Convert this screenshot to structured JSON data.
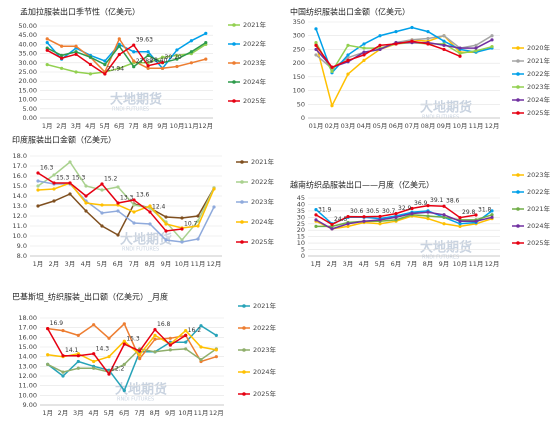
{
  "watermark": "大地期货",
  "watermark_sub": "RNDI FUTURES",
  "chart_data": [
    {
      "type": "line",
      "title": "孟加拉服装出口季节性（亿美元）",
      "legend": "right",
      "grid": true,
      "categories": [
        "1月",
        "2月",
        "3月",
        "4月",
        "5月",
        "6月",
        "7月",
        "8月",
        "9月",
        "10月",
        "11月",
        "12月"
      ],
      "ylim": [
        0,
        50
      ],
      "yticks": [
        {
          "value": 0,
          "label": "0.00"
        },
        {
          "value": 5,
          "label": "5.00"
        },
        {
          "value": 10,
          "label": "10.00"
        },
        {
          "value": 15,
          "label": "15.00"
        },
        {
          "value": 20,
          "label": "20.00"
        },
        {
          "value": 25,
          "label": "25.00"
        },
        {
          "value": 30,
          "label": "30.00"
        },
        {
          "value": 35,
          "label": "35.00"
        },
        {
          "value": 40,
          "label": "40.00"
        },
        {
          "value": 45,
          "label": "45.00"
        },
        {
          "value": 50,
          "label": "50.00"
        }
      ],
      "series": [
        {
          "name": "2021年",
          "color": "#92d050",
          "values": [
            29,
            27,
            25,
            24,
            25,
            27,
            30,
            30,
            33,
            34,
            35,
            40
          ]
        },
        {
          "name": "2022年",
          "color": "#00a0e9",
          "values": [
            41,
            32,
            38,
            34,
            31,
            40,
            36,
            36,
            27,
            37,
            42,
            46
          ]
        },
        {
          "name": "2023年",
          "color": "#ed7d31",
          "values": [
            43,
            39,
            39,
            33,
            25,
            43,
            31,
            27,
            27,
            28,
            30,
            32
          ]
        },
        {
          "name": "2024年",
          "color": "#2e9b4b",
          "values": [
            38,
            34,
            36,
            33,
            29,
            39,
            27.88,
            34,
            30,
            32,
            36,
            41
          ],
          "value_labels": [
            null,
            null,
            null,
            null,
            null,
            null,
            "27.88",
            null,
            null,
            null,
            null,
            null
          ]
        },
        {
          "name": "2025年",
          "color": "#e60012",
          "values": [
            36.8,
            32.5,
            34.6,
            29.1,
            23.94,
            34.5,
            39.63,
            28.4,
            30.2,
            null,
            null,
            null
          ],
          "value_labels": [
            null,
            null,
            null,
            null,
            "23.94",
            null,
            "39.63",
            "28.40",
            "30.20",
            null,
            null,
            null
          ]
        }
      ]
    },
    {
      "type": "line",
      "title": "中国纺织服装出口金额（亿美元）",
      "legend": "right",
      "grid": true,
      "categories": [
        "01月",
        "02月",
        "03月",
        "04月",
        "05月",
        "06月",
        "07月",
        "08月",
        "09月",
        "10月",
        "11月",
        "12月"
      ],
      "ylim": [
        0,
        350
      ],
      "yticks": [
        0,
        50,
        100,
        150,
        200,
        250,
        300,
        350
      ],
      "series": [
        {
          "name": "2020年",
          "color": "#ffc000",
          "values": [
            270,
            45,
            160,
            210,
            250,
            270,
            285,
            280,
            300,
            240,
            240,
            260
          ]
        },
        {
          "name": "2021年",
          "color": "#a5a5a5",
          "values": [
            230,
            180,
            220,
            240,
            250,
            275,
            285,
            290,
            300,
            255,
            265,
            300
          ]
        },
        {
          "name": "2022年",
          "color": "#00a0e9",
          "values": [
            325,
            165,
            230,
            270,
            300,
            315,
            330,
            315,
            280,
            250,
            240,
            255
          ]
        },
        {
          "name": "2023年",
          "color": "#92d050",
          "values": [
            275,
            170,
            265,
            255,
            255,
            270,
            275,
            270,
            270,
            235,
            245,
            260
          ]
        },
        {
          "name": "2024年",
          "color": "#7030a0",
          "values": [
            250,
            185,
            205,
            240,
            250,
            275,
            275,
            275,
            265,
            255,
            255,
            285
          ]
        },
        {
          "name": "2025年",
          "color": "#e60012",
          "values": [
            265,
            185,
            210,
            230,
            265,
            270,
            280,
            270,
            250,
            225,
            null,
            null
          ]
        }
      ]
    },
    {
      "type": "line",
      "title": "印度服装出口金额（亿美元）",
      "legend": "right",
      "grid": true,
      "categories": [
        "1月",
        "2月",
        "3月",
        "4月",
        "5月",
        "6月",
        "7月",
        "8月",
        "9月",
        "10月",
        "11月",
        "12月"
      ],
      "ylim": [
        8,
        18
      ],
      "yticks": [
        {
          "value": 8,
          "label": "8.0"
        },
        {
          "value": 9,
          "label": "9.0"
        },
        {
          "value": 10,
          "label": "10.0"
        },
        {
          "value": 11,
          "label": "11.0"
        },
        {
          "value": 12,
          "label": "12.0"
        },
        {
          "value": 13,
          "label": "13.0"
        },
        {
          "value": 14,
          "label": "14.0"
        },
        {
          "value": 15,
          "label": "15.0"
        },
        {
          "value": 16,
          "label": "16.0"
        },
        {
          "value": 17,
          "label": "17.0"
        },
        {
          "value": 18,
          "label": "18.0"
        }
      ],
      "series": [
        {
          "name": "2021年",
          "color": "#7f4f1f",
          "values": [
            13.0,
            13.5,
            14.2,
            12.5,
            11.0,
            10.1,
            13.2,
            12.8,
            11.9,
            11.8,
            12.0,
            14.8
          ]
        },
        {
          "name": "2022年",
          "color": "#a9d18e",
          "values": [
            15.0,
            16.1,
            17.4,
            15.0,
            14.6,
            14.9,
            13.1,
            12.8,
            11.4,
            9.6,
            11.5,
            14.8
          ]
        },
        {
          "name": "2023年",
          "color": "#8faadc",
          "values": [
            15.5,
            15.2,
            15.2,
            13.5,
            12.3,
            12.5,
            11.3,
            11.2,
            9.6,
            9.4,
            9.7,
            12.9
          ]
        },
        {
          "name": "2024年",
          "color": "#ffc000",
          "values": [
            14.6,
            14.7,
            15.3,
            13.3,
            13.1,
            13.1,
            12.4,
            13.0,
            11.2,
            10.8,
            11.0,
            14.7
          ]
        },
        {
          "name": "2025年",
          "color": "#e60012",
          "values": [
            16.3,
            15.3,
            15.3,
            14.0,
            15.2,
            13.3,
            13.6,
            12.4,
            10.5,
            10.7,
            null,
            null
          ],
          "value_labels": [
            "16.3",
            "15.3",
            "15.3",
            null,
            "15.2",
            "13.3",
            "13.6",
            "12.4",
            null,
            "10.7",
            null,
            null
          ]
        }
      ]
    },
    {
      "type": "line",
      "title": "越南纺织品服装出口——月度（亿美元）",
      "legend": "right",
      "grid": true,
      "categories": [
        "1月",
        "2月",
        "3月",
        "4月",
        "5月",
        "6月",
        "7月",
        "8月",
        "9月",
        "10月",
        "11月",
        "12月"
      ],
      "ylim": [
        0,
        45
      ],
      "yticks": [
        0,
        5,
        10,
        15,
        20,
        25,
        30,
        35,
        40,
        45
      ],
      "series": [
        {
          "name": "2023年",
          "color": "#ffc000",
          "values": [
            27,
            21,
            23,
            26,
            25,
            27,
            31,
            29,
            25,
            23,
            25,
            29
          ]
        },
        {
          "name": "2022年",
          "color": "#00a0e9",
          "values": [
            36,
            25,
            30,
            30,
            29,
            31,
            34,
            35,
            30,
            25,
            26,
            35
          ]
        },
        {
          "name": "2021年",
          "color": "#70ad47",
          "values": [
            23,
            23,
            26,
            27,
            27,
            28,
            32,
            31,
            30,
            28,
            28,
            32
          ]
        },
        {
          "name": "2024年",
          "color": "#7030a0",
          "values": [
            28,
            21,
            25,
            27,
            28,
            30,
            33,
            34,
            32,
            27,
            27,
            30
          ]
        },
        {
          "name": "2025年",
          "color": "#e60012",
          "values": [
            31.9,
            24.5,
            30.6,
            30.5,
            30.7,
            32.9,
            36.9,
            39.1,
            38.6,
            29.8,
            31.8,
            null
          ],
          "value_labels": [
            "31.9",
            "24.5",
            "30.6",
            "30.5",
            "30.7",
            "32.9",
            "36.9",
            "39.1",
            "38.6",
            "29.8",
            "31.8",
            null
          ]
        }
      ]
    },
    {
      "type": "line",
      "title": "巴基斯坦_纺织服装_出口额（亿美元）_月度",
      "legend": "right",
      "grid": true,
      "categories": [
        "1月",
        "2月",
        "3月",
        "4月",
        "5月",
        "6月",
        "7月",
        "8月",
        "9月",
        "10月",
        "11月",
        "12月"
      ],
      "ylim": [
        9,
        18
      ],
      "yticks": [
        {
          "value": 9,
          "label": "9.00"
        },
        {
          "value": 10,
          "label": "10.00"
        },
        {
          "value": 11,
          "label": "11.00"
        },
        {
          "value": 12,
          "label": "12.00"
        },
        {
          "value": 13,
          "label": "13.00"
        },
        {
          "value": 14,
          "label": "14.00"
        },
        {
          "value": 15,
          "label": "15.00"
        },
        {
          "value": 16,
          "label": "16.00"
        },
        {
          "value": 17,
          "label": "17.00"
        },
        {
          "value": 18,
          "label": "18.00"
        }
      ],
      "series": [
        {
          "name": "2021年",
          "color": "#27a3b8",
          "values": [
            13.2,
            12.0,
            13.5,
            13.0,
            12.6,
            10.5,
            14.5,
            14.5,
            15.5,
            15.5,
            17.2,
            16.2
          ]
        },
        {
          "name": "2022年",
          "color": "#ed7d31",
          "values": [
            16.9,
            16.7,
            16.2,
            17.3,
            15.9,
            17.4,
            13.8,
            15.8,
            15.9,
            16.2,
            13.5,
            14.0
          ]
        },
        {
          "name": "2023年",
          "color": "#8fae6b",
          "values": [
            13.2,
            12.4,
            12.8,
            12.8,
            12.4,
            13.2,
            14.8,
            14.5,
            14.7,
            14.8,
            13.7,
            14.8
          ]
        },
        {
          "name": "2024年",
          "color": "#ffc000",
          "values": [
            14.2,
            14.0,
            14.3,
            13.5,
            14.0,
            15.6,
            14.2,
            16.2,
            15.3,
            16.7,
            15.0,
            14.7
          ]
        },
        {
          "name": "2025年",
          "color": "#e60012",
          "values": [
            16.9,
            14.1,
            14.1,
            14.3,
            12.2,
            15.3,
            14.6,
            16.8,
            15.2,
            16.2,
            null,
            null
          ],
          "value_labels": [
            "16.9",
            "14.1",
            null,
            "14.3",
            "12.2",
            "15.3",
            null,
            "16.8",
            null,
            "16.2",
            null,
            null
          ]
        }
      ]
    }
  ]
}
